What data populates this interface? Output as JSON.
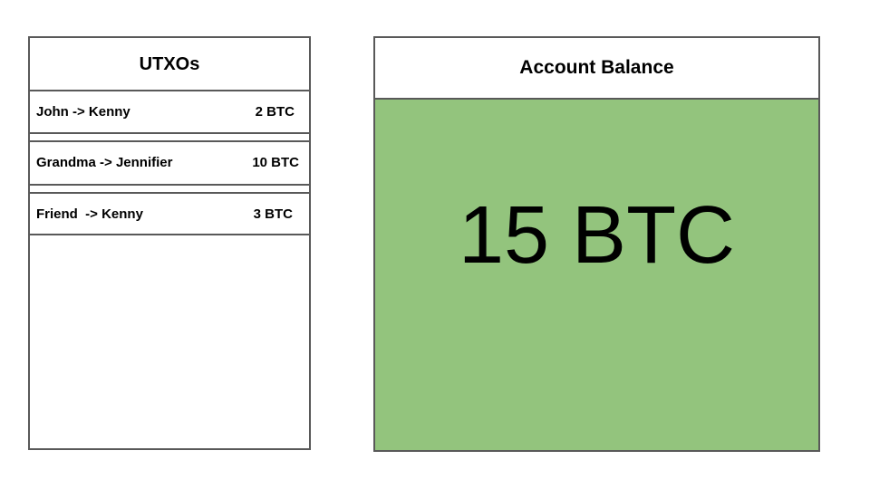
{
  "utxos": {
    "title": "UTXOs",
    "items": [
      {
        "tx": "John -> Kenny",
        "amount": "2 BTC"
      },
      {
        "tx": "Grandma -> Jennifier",
        "amount": "10 BTC"
      },
      {
        "tx": "Friend  -> Kenny",
        "amount": "3 BTC"
      }
    ]
  },
  "balance": {
    "title": "Account Balance",
    "value": "15 BTC",
    "color": "#93c47d"
  }
}
